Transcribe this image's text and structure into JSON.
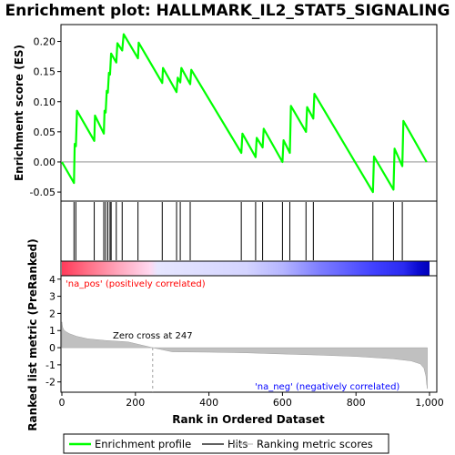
{
  "chart_data": {
    "type": "line",
    "title": "Enrichment plot: HALLMARK_IL2_STAT5_SIGNALING",
    "top_panel": {
      "ylabel": "Enrichment score (ES)",
      "ylim": [
        -0.065,
        0.228
      ],
      "yticks": [
        -0.05,
        0.0,
        0.05,
        0.1,
        0.15,
        0.2
      ],
      "ytick_labels": [
        "-0.05",
        "0.00",
        "0.05",
        "0.10",
        "0.15",
        "0.20"
      ],
      "series": [
        {
          "name": "Enrichment profile",
          "color": "#00ff00",
          "x": [
            0,
            33,
            35,
            38,
            41,
            88,
            90,
            114,
            116,
            119,
            122,
            125,
            128,
            131,
            134,
            148,
            151,
            164,
            168,
            207,
            209,
            273,
            275,
            312,
            315,
            322,
            325,
            349,
            352,
            488,
            491,
            527,
            530,
            546,
            549,
            600,
            603,
            620,
            623,
            664,
            667,
            684,
            687,
            846,
            849,
            902,
            905,
            926,
            929,
            992
          ],
          "y": [
            0.0,
            -0.035,
            0.03,
            0.026,
            0.085,
            0.035,
            0.077,
            0.047,
            0.085,
            0.082,
            0.118,
            0.115,
            0.148,
            0.145,
            0.18,
            0.165,
            0.197,
            0.185,
            0.212,
            0.172,
            0.198,
            0.131,
            0.156,
            0.116,
            0.14,
            0.132,
            0.156,
            0.129,
            0.153,
            0.015,
            0.047,
            0.008,
            0.04,
            0.024,
            0.055,
            0.0,
            0.036,
            0.015,
            0.093,
            0.05,
            0.091,
            0.072,
            0.113,
            -0.05,
            0.009,
            -0.046,
            0.022,
            -0.007,
            0.068,
            0.0
          ]
        }
      ]
    },
    "hits": [
      33,
      38,
      88,
      114,
      119,
      125,
      131,
      134,
      148,
      164,
      207,
      273,
      312,
      322,
      349,
      488,
      527,
      546,
      600,
      620,
      664,
      684,
      846,
      902,
      926
    ],
    "bottom_panel": {
      "ylabel": "Ranked list metric (PreRanked)",
      "xlabel": "Rank in Ordered Dataset",
      "xlim": [
        0,
        1000
      ],
      "xticks": [
        0,
        200,
        400,
        600,
        800,
        1000
      ],
      "xtick_labels": [
        "0",
        "200",
        "400",
        "600",
        "800",
        "1,000"
      ],
      "ylim": [
        -2.6,
        4.2
      ],
      "yticks": [
        4,
        3,
        2,
        1,
        0,
        -1,
        -2
      ],
      "ytick_labels": [
        "4",
        "3",
        "2",
        "1",
        "0",
        "-1",
        "-2"
      ],
      "zero_cross": 247,
      "zero_cross_label": "Zero cross at 247",
      "pos_label": "'na_pos' (positively correlated)",
      "neg_label": "'na_neg' (negatively correlated)",
      "series": {
        "name": "Ranking metric scores",
        "x": [
          0,
          2,
          5,
          10,
          20,
          40,
          70,
          120,
          180,
          247,
          300,
          400,
          500,
          600,
          700,
          800,
          900,
          950,
          975,
          985,
          990,
          992,
          994
        ],
        "y": [
          1.5,
          1.2,
          1.05,
          0.95,
          0.82,
          0.66,
          0.52,
          0.42,
          0.34,
          0.0,
          -0.24,
          -0.26,
          -0.3,
          -0.37,
          -0.43,
          -0.51,
          -0.65,
          -0.77,
          -0.95,
          -1.2,
          -1.65,
          -2.1,
          -2.4
        ]
      }
    },
    "legend": {
      "items": [
        {
          "label": "Enrichment profile",
          "color": "#00ff00"
        },
        {
          "label": "Hits",
          "color": "#000000"
        },
        {
          "label": "Ranking metric scores",
          "color": "#c0c0c0"
        }
      ]
    },
    "colors": {
      "profile": "#00ff00",
      "pos_text": "#ff0000",
      "neg_text": "#0000ff",
      "metric_fill": "#c0c0c0"
    },
    "grid": false,
    "legend_placement": "bottom"
  }
}
